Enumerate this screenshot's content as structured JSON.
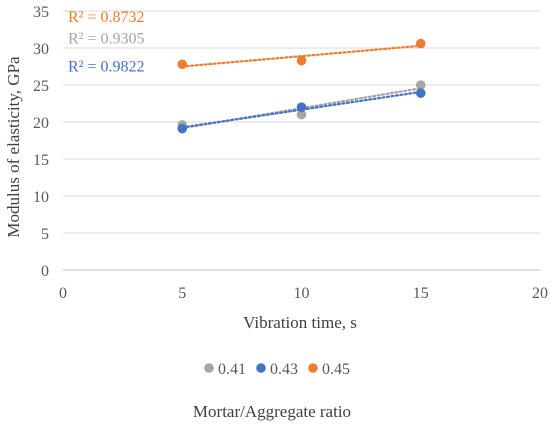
{
  "chart_data": {
    "type": "scatter",
    "xlabel": "Vibration time, s",
    "ylabel": "Modulus of elasticity, GPa",
    "xlim": [
      0,
      20
    ],
    "ylim": [
      0,
      35
    ],
    "xticks": [
      0,
      5,
      10,
      15,
      20
    ],
    "yticks": [
      0,
      5,
      10,
      15,
      20,
      25,
      30,
      35
    ],
    "legend_title": "Mortar/Aggregate ratio",
    "legend_position": "bottom",
    "grid": "horizontal",
    "trendlines": "linear, dotted",
    "series": [
      {
        "name": "0.41",
        "color": "#a5a5a5",
        "x": [
          5,
          10,
          15
        ],
        "y": [
          19.6,
          21.0,
          25.0
        ],
        "r2_label": "R² = 0.9305"
      },
      {
        "name": "0.43",
        "color": "#4472c4",
        "x": [
          5,
          10,
          15
        ],
        "y": [
          19.1,
          22.0,
          23.9
        ],
        "r2_label": "R² = 0.9822"
      },
      {
        "name": "0.45",
        "color": "#ed7d31",
        "x": [
          5,
          10,
          15
        ],
        "y": [
          27.8,
          28.3,
          30.6
        ],
        "r2_label": "R² = 0.8732"
      }
    ]
  }
}
